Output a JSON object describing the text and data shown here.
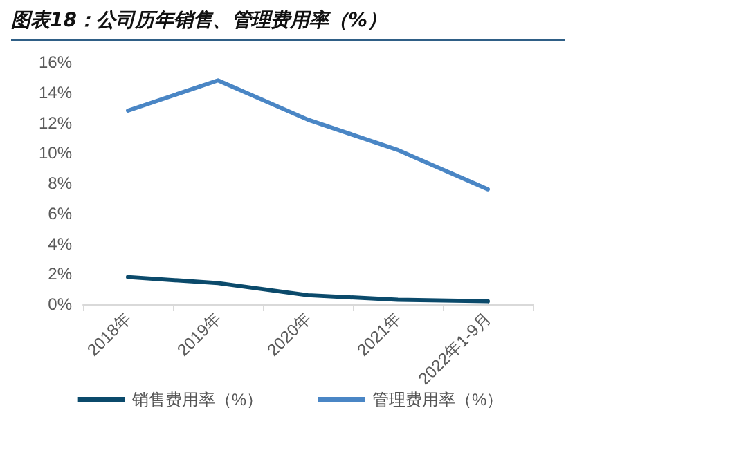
{
  "chart_data": {
    "type": "line",
    "title": "图表18：公司历年销售、管理费用率（%）",
    "categories": [
      "2018年",
      "2019年",
      "2020年",
      "2021年",
      "2022年1-9月"
    ],
    "series": [
      {
        "name": "销售费用率（%）",
        "color": "#0b4a6b",
        "values": [
          1.8,
          1.4,
          0.6,
          0.3,
          0.2
        ]
      },
      {
        "name": "管理费用率（%）",
        "color": "#4a86c5",
        "values": [
          12.8,
          14.8,
          12.2,
          10.2,
          7.6
        ]
      }
    ],
    "ylim": [
      0,
      16
    ],
    "yticks": [
      {
        "value": 0,
        "label": "0%"
      },
      {
        "value": 2,
        "label": "2%"
      },
      {
        "value": 4,
        "label": "4%"
      },
      {
        "value": 6,
        "label": "6%"
      },
      {
        "value": 8,
        "label": "8%"
      },
      {
        "value": 10,
        "label": "10%"
      },
      {
        "value": 12,
        "label": "12%"
      },
      {
        "value": 14,
        "label": "14%"
      },
      {
        "value": 16,
        "label": "16%"
      }
    ],
    "grid": false,
    "legend": "bottom",
    "marker": "none",
    "line_style": "solid"
  }
}
